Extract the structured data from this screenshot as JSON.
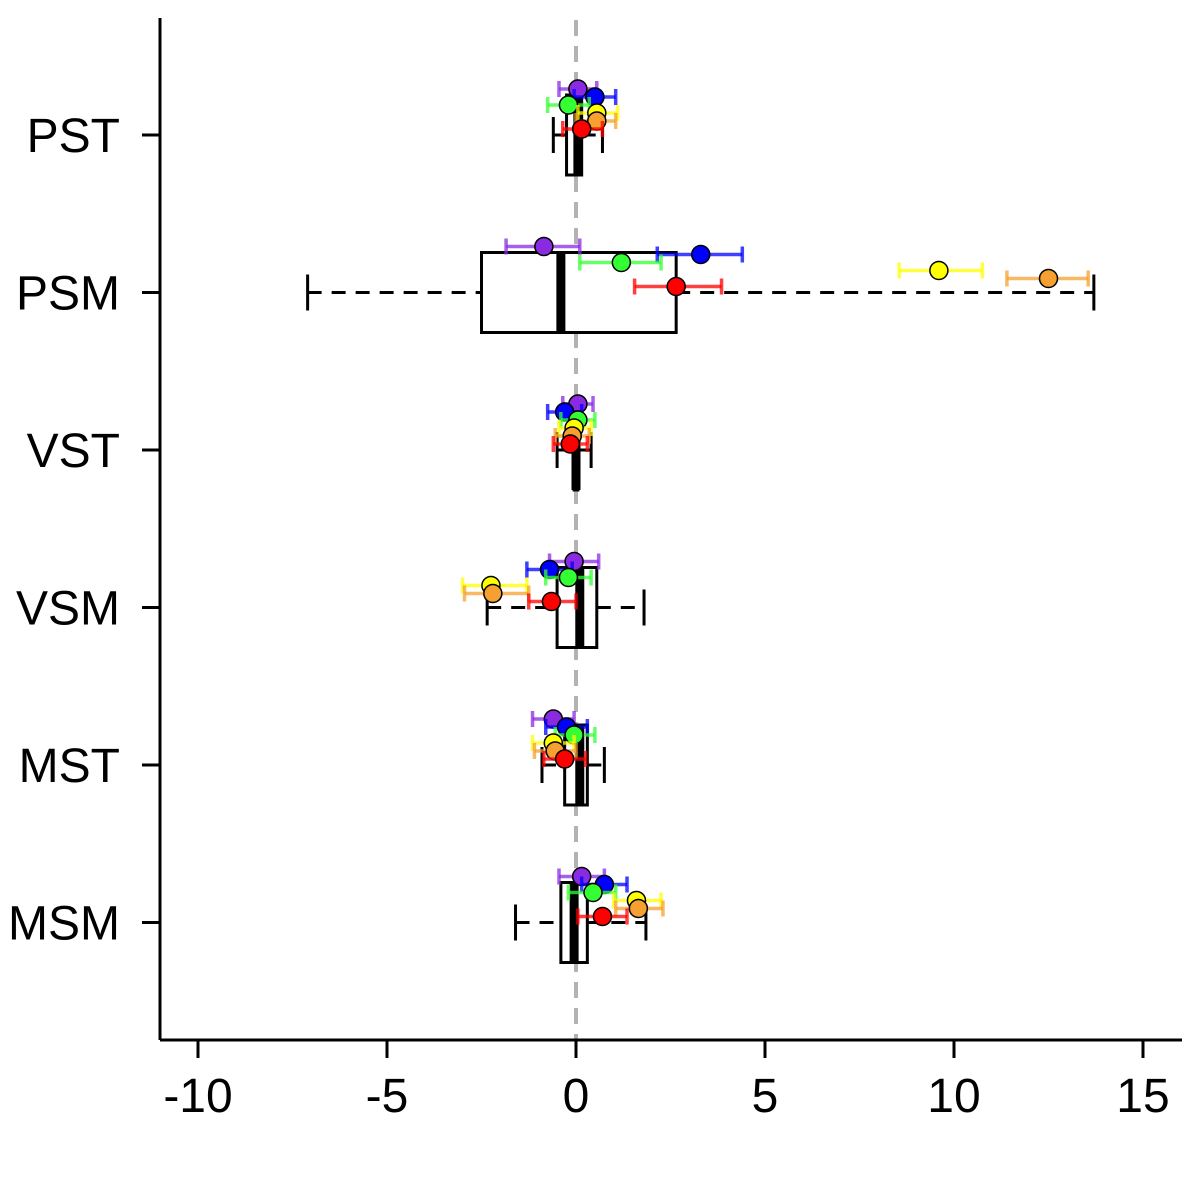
{
  "chart_data": {
    "type": "boxplot",
    "orientation": "horizontal",
    "title": "",
    "xlabel": "",
    "ylabel": "",
    "xlim": [
      -11,
      16
    ],
    "x_ticks": [
      -10,
      -5,
      0,
      5,
      10,
      15
    ],
    "x_tick_labels": [
      "-10",
      "-5",
      "0",
      "5",
      "10",
      "15"
    ],
    "reference_line": 0,
    "categories": [
      "PST",
      "PSM",
      "VST",
      "VSM",
      "MST",
      "MSM"
    ],
    "boxes": [
      {
        "category": "PST",
        "whisker_low": -0.6,
        "q1": -0.25,
        "median": 0.05,
        "q3": 0.15,
        "whisker_high": 0.7
      },
      {
        "category": "PSM",
        "whisker_low": -7.1,
        "q1": -2.5,
        "median": -0.4,
        "q3": 2.65,
        "whisker_high": 13.7
      },
      {
        "category": "VST",
        "whisker_low": -0.5,
        "q1": -0.05,
        "median": 0.0,
        "q3": 0.05,
        "whisker_high": 0.4
      },
      {
        "category": "VSM",
        "whisker_low": -2.35,
        "q1": -0.5,
        "median": 0.1,
        "q3": 0.55,
        "whisker_high": 1.8
      },
      {
        "category": "MST",
        "whisker_low": -0.9,
        "q1": -0.3,
        "median": 0.1,
        "q3": 0.3,
        "whisker_high": 0.75
      },
      {
        "category": "MSM",
        "whisker_low": -1.6,
        "q1": -0.4,
        "median": -0.05,
        "q3": 0.3,
        "whisker_high": 1.85
      }
    ],
    "point_colors": {
      "purple": "#8a2be2",
      "blue": "#0000ff",
      "green": "#33ff33",
      "yellow": "#ffff00",
      "orange": "#f5a030",
      "red": "#ff0000"
    },
    "points": [
      {
        "category": "PST",
        "color": "purple",
        "value": 0.05,
        "low": -0.45,
        "high": 0.55
      },
      {
        "category": "PST",
        "color": "blue",
        "value": 0.5,
        "low": -0.05,
        "high": 1.05
      },
      {
        "category": "PST",
        "color": "green",
        "value": -0.2,
        "low": -0.75,
        "high": 0.35
      },
      {
        "category": "PST",
        "color": "yellow",
        "value": 0.55,
        "low": 0.05,
        "high": 1.1
      },
      {
        "category": "PST",
        "color": "orange",
        "value": 0.55,
        "low": 0.0,
        "high": 1.05
      },
      {
        "category": "PST",
        "color": "red",
        "value": 0.15,
        "low": -0.35,
        "high": 0.7
      },
      {
        "category": "PSM",
        "color": "purple",
        "value": -0.85,
        "low": -1.85,
        "high": 0.1
      },
      {
        "category": "PSM",
        "color": "blue",
        "value": 3.3,
        "low": 2.15,
        "high": 4.4
      },
      {
        "category": "PSM",
        "color": "green",
        "value": 1.2,
        "low": 0.1,
        "high": 2.25
      },
      {
        "category": "PSM",
        "color": "yellow",
        "value": 9.6,
        "low": 8.55,
        "high": 10.75
      },
      {
        "category": "PSM",
        "color": "orange",
        "value": 12.5,
        "low": 11.4,
        "high": 13.55
      },
      {
        "category": "PSM",
        "color": "red",
        "value": 2.65,
        "low": 1.55,
        "high": 3.85
      },
      {
        "category": "VST",
        "color": "purple",
        "value": 0.05,
        "low": -0.35,
        "high": 0.45
      },
      {
        "category": "VST",
        "color": "blue",
        "value": -0.3,
        "low": -0.75,
        "high": 0.15
      },
      {
        "category": "VST",
        "color": "green",
        "value": 0.05,
        "low": -0.4,
        "high": 0.5
      },
      {
        "category": "VST",
        "color": "yellow",
        "value": -0.05,
        "low": -0.45,
        "high": 0.4
      },
      {
        "category": "VST",
        "color": "orange",
        "value": -0.1,
        "low": -0.55,
        "high": 0.35
      },
      {
        "category": "VST",
        "color": "red",
        "value": -0.15,
        "low": -0.6,
        "high": 0.3
      },
      {
        "category": "VSM",
        "color": "purple",
        "value": -0.05,
        "low": -0.7,
        "high": 0.6
      },
      {
        "category": "VSM",
        "color": "blue",
        "value": -0.7,
        "low": -1.3,
        "high": -0.1
      },
      {
        "category": "VSM",
        "color": "green",
        "value": -0.2,
        "low": -0.8,
        "high": 0.4
      },
      {
        "category": "VSM",
        "color": "yellow",
        "value": -2.25,
        "low": -3.0,
        "high": -1.3
      },
      {
        "category": "VSM",
        "color": "orange",
        "value": -2.2,
        "low": -2.95,
        "high": -1.25
      },
      {
        "category": "VSM",
        "color": "red",
        "value": -0.65,
        "low": -1.25,
        "high": 0.0
      },
      {
        "category": "MST",
        "color": "purple",
        "value": -0.6,
        "low": -1.15,
        "high": -0.05
      },
      {
        "category": "MST",
        "color": "blue",
        "value": -0.25,
        "low": -0.8,
        "high": 0.3
      },
      {
        "category": "MST",
        "color": "green",
        "value": -0.05,
        "low": -0.55,
        "high": 0.5
      },
      {
        "category": "MST",
        "color": "yellow",
        "value": -0.6,
        "low": -1.15,
        "high": -0.05
      },
      {
        "category": "MST",
        "color": "orange",
        "value": -0.55,
        "low": -1.1,
        "high": 0.0
      },
      {
        "category": "MST",
        "color": "red",
        "value": -0.3,
        "low": -0.85,
        "high": 0.25
      },
      {
        "category": "MSM",
        "color": "purple",
        "value": 0.15,
        "low": -0.45,
        "high": 0.75
      },
      {
        "category": "MSM",
        "color": "blue",
        "value": 0.75,
        "low": 0.15,
        "high": 1.35
      },
      {
        "category": "MSM",
        "color": "green",
        "value": 0.45,
        "low": -0.2,
        "high": 1.05
      },
      {
        "category": "MSM",
        "color": "yellow",
        "value": 1.6,
        "low": 1.0,
        "high": 2.25
      },
      {
        "category": "MSM",
        "color": "orange",
        "value": 1.65,
        "low": 1.05,
        "high": 2.3
      },
      {
        "category": "MSM",
        "color": "red",
        "value": 0.7,
        "low": 0.05,
        "high": 1.35
      }
    ]
  }
}
